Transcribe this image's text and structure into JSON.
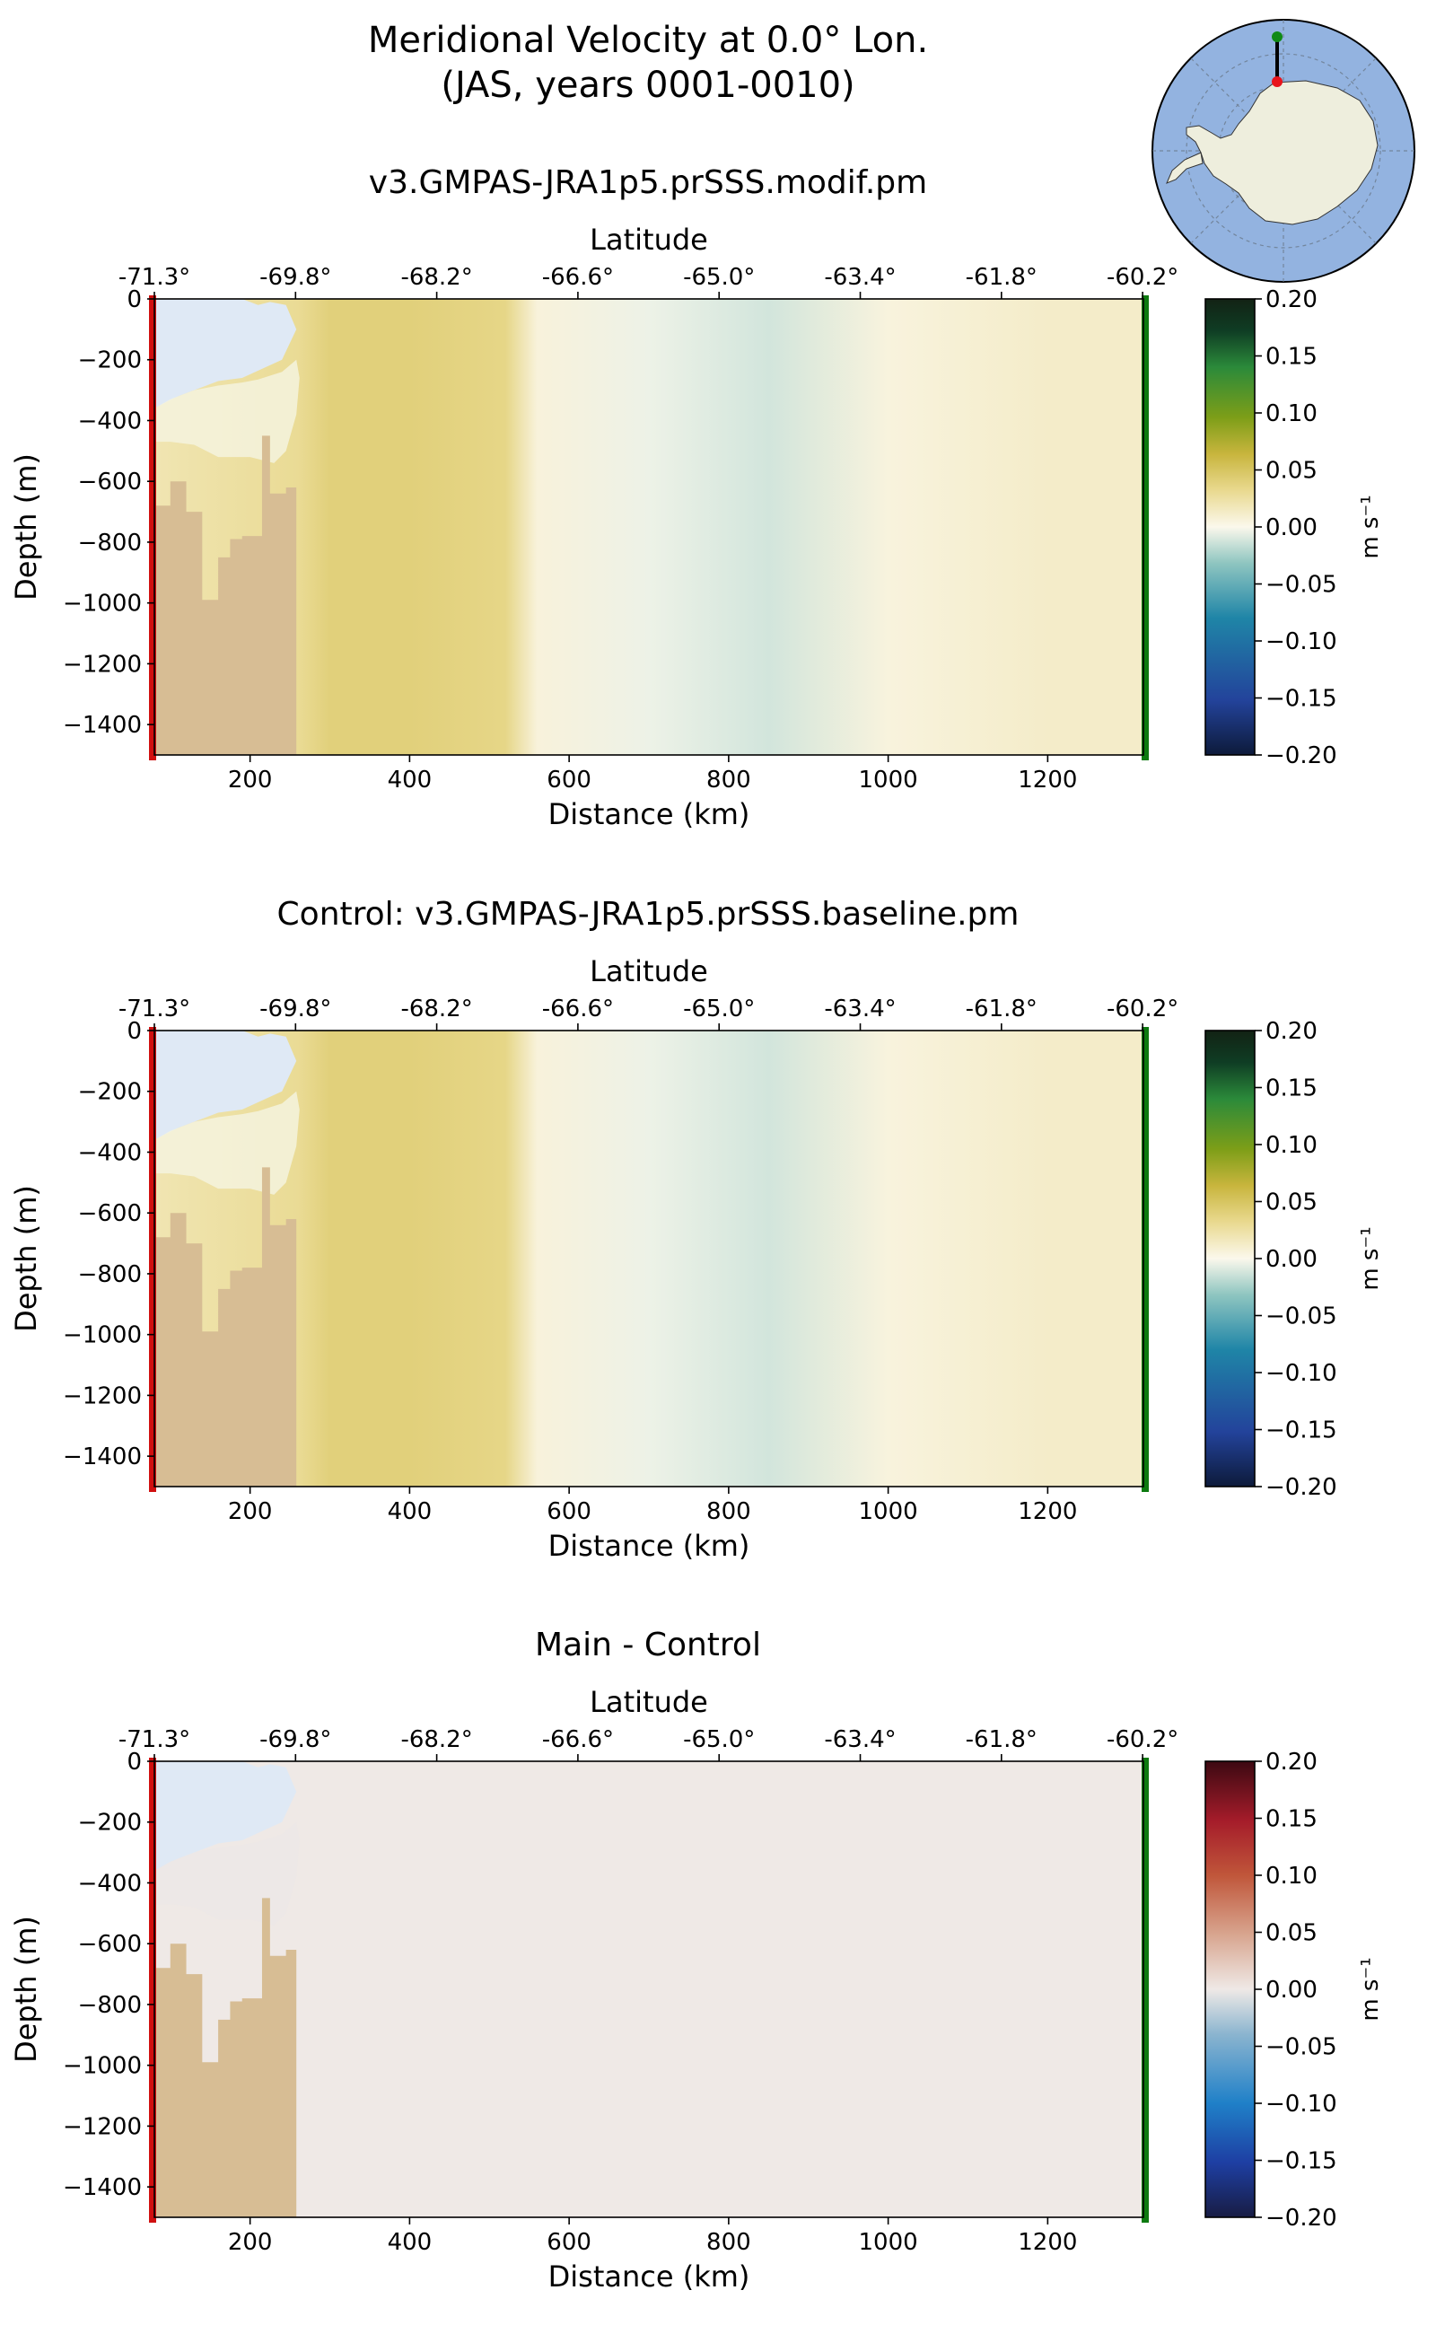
{
  "figure": {
    "title_line1": "Meridional Velocity at 0.0° Lon.",
    "title_line2": "(JAS, years 0001-0010)"
  },
  "inset_map": {
    "description_icon": "antarctica-polar-map-icon",
    "colors": {
      "ocean": "#93b3e0",
      "land": "#eeeedd",
      "start_marker": "#e8141c",
      "end_marker": "#108a16"
    }
  },
  "colors": {
    "land_bed": "#d7bd94",
    "ice_shelf": "#dfe9f5",
    "section_start": "#d01010",
    "section_end": "#0d7a10"
  },
  "chart_data": [
    {
      "type": "heatmap",
      "title": "v3.GMPAS-JRA1p5.prSSS.modif.pm",
      "xlabel": "Distance (km)",
      "ylabel": "Depth (m)",
      "top_xlabel": "Latitude",
      "xlim": [
        80,
        1320
      ],
      "ylim": [
        -1500,
        0
      ],
      "xticks": [
        200,
        400,
        600,
        800,
        1000,
        1200
      ],
      "xtick_labels": [
        "200",
        "400",
        "600",
        "800",
        "1000",
        "1200"
      ],
      "yticks": [
        0,
        -200,
        -400,
        -600,
        -800,
        -1000,
        -1200,
        -1400
      ],
      "ytick_labels": [
        "0",
        "−200",
        "−400",
        "−600",
        "−800",
        "−1000",
        "−1200",
        "−1400"
      ],
      "lat_ticks_km": [
        80,
        257,
        434,
        611,
        788,
        965,
        1142,
        1319
      ],
      "lat_labels": [
        "-71.3°",
        "-69.8°",
        "-68.2°",
        "-66.6°",
        "-65.0°",
        "-63.4°",
        "-61.8°",
        "-60.2°"
      ],
      "colorbar": {
        "label": "m s⁻¹",
        "cmap": "speed",
        "ticks": [
          0.2,
          0.15,
          0.1,
          0.05,
          0.0,
          -0.05,
          -0.1,
          -0.15,
          -0.2
        ],
        "tick_labels": [
          "0.20",
          "0.15",
          "0.10",
          "0.05",
          "0.00",
          "−0.05",
          "−0.10",
          "−0.15",
          "−0.20"
        ],
        "stops": [
          [
            "#0d1a3a",
            0
          ],
          [
            "#23439b",
            0.12
          ],
          [
            "#1f85a7",
            0.3
          ],
          [
            "#8ec5c0",
            0.42
          ],
          [
            "#fbf8ec",
            0.5
          ],
          [
            "#e9d98f",
            0.58
          ],
          [
            "#c8b53d",
            0.66
          ],
          [
            "#7d9e18",
            0.74
          ],
          [
            "#2b8a3a",
            0.85
          ],
          [
            "#0f3d24",
            0.93
          ],
          [
            "#122214",
            1
          ]
        ]
      },
      "field_km": [
        {
          "x": 80,
          "v": 0.02
        },
        {
          "x": 260,
          "v": 0.03
        },
        {
          "x": 300,
          "v": 0.04
        },
        {
          "x": 400,
          "v": 0.04
        },
        {
          "x": 520,
          "v": 0.035
        },
        {
          "x": 560,
          "v": 0.006
        },
        {
          "x": 700,
          "v": -0.004
        },
        {
          "x": 850,
          "v": -0.012
        },
        {
          "x": 1000,
          "v": 0.005
        },
        {
          "x": 1200,
          "v": 0.012
        },
        {
          "x": 1320,
          "v": 0.012
        }
      ]
    },
    {
      "type": "heatmap",
      "title": "Control: v3.GMPAS-JRA1p5.prSSS.baseline.pm",
      "xlabel": "Distance (km)",
      "ylabel": "Depth (m)",
      "top_xlabel": "Latitude",
      "xlim": [
        80,
        1320
      ],
      "ylim": [
        -1500,
        0
      ],
      "xticks": [
        200,
        400,
        600,
        800,
        1000,
        1200
      ],
      "xtick_labels": [
        "200",
        "400",
        "600",
        "800",
        "1000",
        "1200"
      ],
      "yticks": [
        0,
        -200,
        -400,
        -600,
        -800,
        -1000,
        -1200,
        -1400
      ],
      "ytick_labels": [
        "0",
        "−200",
        "−400",
        "−600",
        "−800",
        "−1000",
        "−1200",
        "−1400"
      ],
      "lat_ticks_km": [
        80,
        257,
        434,
        611,
        788,
        965,
        1142,
        1319
      ],
      "lat_labels": [
        "-71.3°",
        "-69.8°",
        "-68.2°",
        "-66.6°",
        "-65.0°",
        "-63.4°",
        "-61.8°",
        "-60.2°"
      ],
      "colorbar": {
        "label": "m s⁻¹",
        "cmap": "speed",
        "ticks": [
          0.2,
          0.15,
          0.1,
          0.05,
          0.0,
          -0.05,
          -0.1,
          -0.15,
          -0.2
        ],
        "tick_labels": [
          "0.20",
          "0.15",
          "0.10",
          "0.05",
          "0.00",
          "−0.05",
          "−0.10",
          "−0.15",
          "−0.20"
        ],
        "stops": [
          [
            "#0d1a3a",
            0
          ],
          [
            "#23439b",
            0.12
          ],
          [
            "#1f85a7",
            0.3
          ],
          [
            "#8ec5c0",
            0.42
          ],
          [
            "#fbf8ec",
            0.5
          ],
          [
            "#e9d98f",
            0.58
          ],
          [
            "#c8b53d",
            0.66
          ],
          [
            "#7d9e18",
            0.74
          ],
          [
            "#2b8a3a",
            0.85
          ],
          [
            "#0f3d24",
            0.93
          ],
          [
            "#122214",
            1
          ]
        ]
      },
      "field_km": [
        {
          "x": 80,
          "v": 0.02
        },
        {
          "x": 260,
          "v": 0.03
        },
        {
          "x": 300,
          "v": 0.04
        },
        {
          "x": 400,
          "v": 0.04
        },
        {
          "x": 520,
          "v": 0.035
        },
        {
          "x": 560,
          "v": 0.006
        },
        {
          "x": 700,
          "v": -0.004
        },
        {
          "x": 850,
          "v": -0.012
        },
        {
          "x": 1000,
          "v": 0.005
        },
        {
          "x": 1200,
          "v": 0.012
        },
        {
          "x": 1320,
          "v": 0.012
        }
      ]
    },
    {
      "type": "heatmap",
      "title": "Main - Control",
      "xlabel": "Distance (km)",
      "ylabel": "Depth (m)",
      "top_xlabel": "Latitude",
      "xlim": [
        80,
        1320
      ],
      "ylim": [
        -1500,
        0
      ],
      "xticks": [
        200,
        400,
        600,
        800,
        1000,
        1200
      ],
      "xtick_labels": [
        "200",
        "400",
        "600",
        "800",
        "1000",
        "1200"
      ],
      "yticks": [
        0,
        -200,
        -400,
        -600,
        -800,
        -1000,
        -1200,
        -1400
      ],
      "ytick_labels": [
        "0",
        "−200",
        "−400",
        "−600",
        "−800",
        "−1000",
        "−1200",
        "−1400"
      ],
      "lat_ticks_km": [
        80,
        257,
        434,
        611,
        788,
        965,
        1142,
        1319
      ],
      "lat_labels": [
        "-71.3°",
        "-69.8°",
        "-68.2°",
        "-66.6°",
        "-65.0°",
        "-63.4°",
        "-61.8°",
        "-60.2°"
      ],
      "colorbar": {
        "label": "m s⁻¹",
        "cmap": "balance",
        "ticks": [
          0.2,
          0.15,
          0.1,
          0.05,
          0.0,
          -0.05,
          -0.1,
          -0.15,
          -0.2
        ],
        "tick_labels": [
          "0.20",
          "0.15",
          "0.10",
          "0.05",
          "0.00",
          "−0.05",
          "−0.10",
          "−0.15",
          "−0.20"
        ],
        "stops": [
          [
            "#181c43",
            0
          ],
          [
            "#1e3fa3",
            0.12
          ],
          [
            "#1f80c8",
            0.25
          ],
          [
            "#8ab4cf",
            0.4
          ],
          [
            "#efe9e6",
            0.5
          ],
          [
            "#d8a58f",
            0.62
          ],
          [
            "#c0563a",
            0.75
          ],
          [
            "#a51c2a",
            0.87
          ],
          [
            "#3c0912",
            1
          ]
        ]
      },
      "field_km": [
        {
          "x": 80,
          "v": 0.0
        },
        {
          "x": 1320,
          "v": 0.0
        }
      ]
    }
  ],
  "bathymetry_km_m": [
    [
      80,
      -680
    ],
    [
      100,
      -680
    ],
    [
      100,
      -600
    ],
    [
      120,
      -600
    ],
    [
      120,
      -700
    ],
    [
      140,
      -700
    ],
    [
      140,
      -990
    ],
    [
      160,
      -990
    ],
    [
      160,
      -850
    ],
    [
      175,
      -850
    ],
    [
      175,
      -790
    ],
    [
      190,
      -790
    ],
    [
      190,
      -780
    ],
    [
      215,
      -780
    ],
    [
      215,
      -450
    ],
    [
      225,
      -450
    ],
    [
      225,
      -640
    ],
    [
      245,
      -640
    ],
    [
      245,
      -620
    ],
    [
      258,
      -620
    ],
    [
      258,
      -1500
    ],
    [
      80,
      -1500
    ]
  ],
  "ice_shelf_km_m": [
    [
      80,
      0
    ],
    [
      190,
      0
    ],
    [
      210,
      -20
    ],
    [
      225,
      -10
    ],
    [
      245,
      -20
    ],
    [
      258,
      -100
    ],
    [
      240,
      -200
    ],
    [
      215,
      -230
    ],
    [
      190,
      -260
    ],
    [
      160,
      -270
    ],
    [
      140,
      -290
    ],
    [
      110,
      -320
    ],
    [
      80,
      -360
    ]
  ],
  "ice_shelf_base_km_m": [
    [
      80,
      -360
    ],
    [
      100,
      -330
    ],
    [
      130,
      -300
    ],
    [
      160,
      -285
    ],
    [
      190,
      -275
    ],
    [
      210,
      -265
    ],
    [
      240,
      -240
    ],
    [
      258,
      -200
    ],
    [
      262,
      -260
    ],
    [
      258,
      -380
    ],
    [
      245,
      -500
    ],
    [
      230,
      -540
    ],
    [
      200,
      -520
    ],
    [
      160,
      -520
    ],
    [
      130,
      -480
    ],
    [
      100,
      -470
    ],
    [
      80,
      -470
    ]
  ]
}
